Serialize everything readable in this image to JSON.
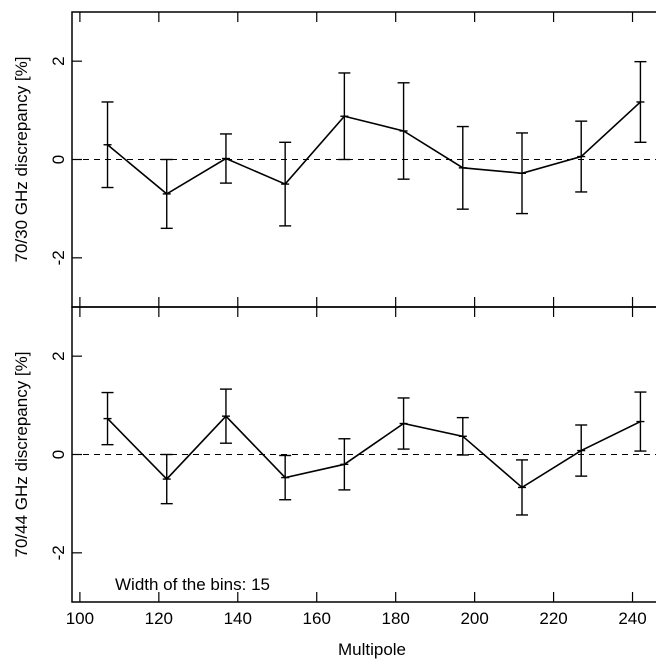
{
  "chart_data": [
    {
      "type": "line",
      "ylabel": "70/30 GHz discrepancy [%]",
      "ylim": [
        -3,
        3
      ],
      "yticks": [
        -2,
        0,
        2
      ],
      "xlim": [
        98,
        250
      ],
      "xticks": [
        100,
        120,
        140,
        160,
        180,
        200,
        220,
        240
      ],
      "reference_line": 0,
      "series": [
        {
          "x": [
            107,
            122,
            137,
            152,
            167,
            182,
            197,
            212,
            227,
            242
          ],
          "y": [
            0.3,
            -0.7,
            0.02,
            -0.5,
            0.88,
            0.58,
            -0.17,
            -0.28,
            0.06,
            1.17
          ],
          "err": [
            0.87,
            0.7,
            0.5,
            0.85,
            0.88,
            0.98,
            0.84,
            0.82,
            0.72,
            0.82
          ]
        }
      ]
    },
    {
      "type": "line",
      "ylabel": "70/44 GHz discrepancy [%]",
      "xlabel": "Multipole",
      "ylim": [
        -3,
        3
      ],
      "yticks": [
        -2,
        0,
        2
      ],
      "xlim": [
        98,
        250
      ],
      "xticks": [
        100,
        120,
        140,
        160,
        180,
        200,
        220,
        240
      ],
      "reference_line": 0,
      "annotation": "Width of the bins: 15",
      "series": [
        {
          "x": [
            107,
            122,
            137,
            152,
            167,
            182,
            197,
            212,
            227,
            242
          ],
          "y": [
            0.73,
            -0.5,
            0.78,
            -0.47,
            -0.2,
            0.63,
            0.37,
            -0.67,
            0.08,
            0.67
          ],
          "err": [
            0.53,
            0.5,
            0.55,
            0.45,
            0.52,
            0.52,
            0.38,
            0.56,
            0.52,
            0.6
          ]
        }
      ]
    }
  ]
}
